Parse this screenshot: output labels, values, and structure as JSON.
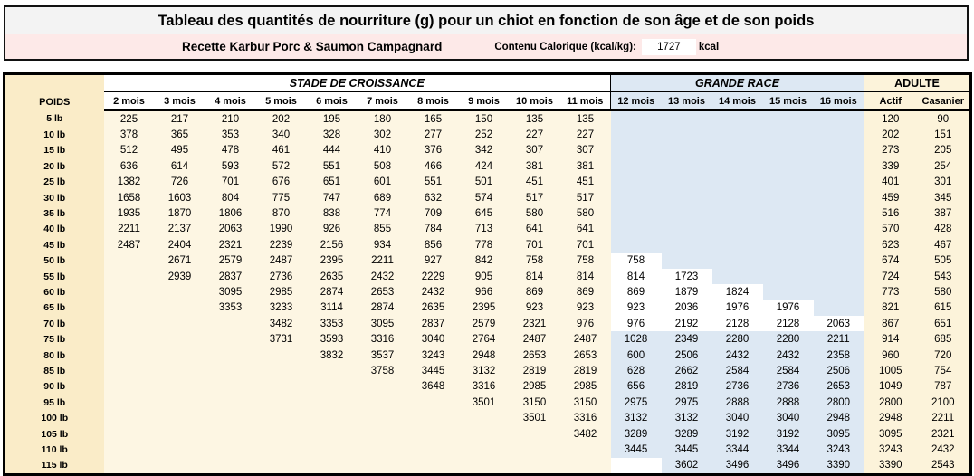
{
  "title_box": {
    "title": "Tableau des quantités de nourriture (g) pour un chiot en fonction de son âge et de son poids",
    "recipe": "Recette Karbur Porc & Saumon Campagnard",
    "calorie_label": "Contenu Calorique (kcal/kg):",
    "calorie_value": "1727",
    "calorie_unit": "kcal"
  },
  "table": {
    "corner_label": "POIDS",
    "groups": [
      {
        "label": "STADE DE CROISSANCE",
        "span": 10,
        "style": "stade"
      },
      {
        "label": "GRANDE RACE",
        "span": 5,
        "style": "grande"
      },
      {
        "label": "ADULTE",
        "span": 2,
        "style": "adulte"
      }
    ],
    "columns": [
      "2 mois",
      "3 mois",
      "4 mois",
      "5 mois",
      "6 mois",
      "7 mois",
      "8 mois",
      "9 mois",
      "10 mois",
      "11 mois",
      "12 mois",
      "13 mois",
      "14 mois",
      "15 mois",
      "16 mois",
      "Actif",
      "Casanier"
    ],
    "rows": [
      {
        "weight": "5 lb",
        "values": [
          "225",
          "217",
          "210",
          "202",
          "195",
          "180",
          "165",
          "150",
          "135",
          "135",
          "",
          "",
          "",
          "",
          "",
          "120",
          "90"
        ]
      },
      {
        "weight": "10 lb",
        "values": [
          "378",
          "365",
          "353",
          "340",
          "328",
          "302",
          "277",
          "252",
          "227",
          "227",
          "",
          "",
          "",
          "",
          "",
          "202",
          "151"
        ]
      },
      {
        "weight": "15 lb",
        "values": [
          "512",
          "495",
          "478",
          "461",
          "444",
          "410",
          "376",
          "342",
          "307",
          "307",
          "",
          "",
          "",
          "",
          "",
          "273",
          "205"
        ]
      },
      {
        "weight": "20 lb",
        "values": [
          "636",
          "614",
          "593",
          "572",
          "551",
          "508",
          "466",
          "424",
          "381",
          "381",
          "",
          "",
          "",
          "",
          "",
          "339",
          "254"
        ]
      },
      {
        "weight": "25 lb",
        "values": [
          "1382",
          "726",
          "701",
          "676",
          "651",
          "601",
          "551",
          "501",
          "451",
          "451",
          "",
          "",
          "",
          "",
          "",
          "401",
          "301"
        ]
      },
      {
        "weight": "30 lb",
        "values": [
          "1658",
          "1603",
          "804",
          "775",
          "747",
          "689",
          "632",
          "574",
          "517",
          "517",
          "",
          "",
          "",
          "",
          "",
          "459",
          "345"
        ]
      },
      {
        "weight": "35 lb",
        "values": [
          "1935",
          "1870",
          "1806",
          "870",
          "838",
          "774",
          "709",
          "645",
          "580",
          "580",
          "",
          "",
          "",
          "",
          "",
          "516",
          "387"
        ]
      },
      {
        "weight": "40 lb",
        "values": [
          "2211",
          "2137",
          "2063",
          "1990",
          "926",
          "855",
          "784",
          "713",
          "641",
          "641",
          "",
          "",
          "",
          "",
          "",
          "570",
          "428"
        ]
      },
      {
        "weight": "45 lb",
        "values": [
          "2487",
          "2404",
          "2321",
          "2239",
          "2156",
          "934",
          "856",
          "778",
          "701",
          "701",
          "",
          "",
          "",
          "",
          "",
          "623",
          "467"
        ]
      },
      {
        "weight": "50 lb",
        "values": [
          "",
          "2671",
          "2579",
          "2487",
          "2395",
          "2211",
          "927",
          "842",
          "758",
          "758",
          "758",
          "",
          "",
          "",
          "",
          "674",
          "505"
        ]
      },
      {
        "weight": "55 lb",
        "values": [
          "",
          "2939",
          "2837",
          "2736",
          "2635",
          "2432",
          "2229",
          "905",
          "814",
          "814",
          "814",
          "1723",
          "",
          "",
          "",
          "724",
          "543"
        ]
      },
      {
        "weight": "60 lb",
        "values": [
          "",
          "",
          "3095",
          "2985",
          "2874",
          "2653",
          "2432",
          "966",
          "869",
          "869",
          "869",
          "1879",
          "1824",
          "",
          "",
          "773",
          "580"
        ]
      },
      {
        "weight": "65 lb",
        "values": [
          "",
          "",
          "3353",
          "3233",
          "3114",
          "2874",
          "2635",
          "2395",
          "923",
          "923",
          "923",
          "2036",
          "1976",
          "1976",
          "",
          "821",
          "615"
        ]
      },
      {
        "weight": "70 lb",
        "values": [
          "",
          "",
          "",
          "3482",
          "3353",
          "3095",
          "2837",
          "2579",
          "2321",
          "976",
          "976",
          "2192",
          "2128",
          "2128",
          "2063",
          "867",
          "651"
        ]
      },
      {
        "weight": "75 lb",
        "values": [
          "",
          "",
          "",
          "3731",
          "3593",
          "3316",
          "3040",
          "2764",
          "2487",
          "2487",
          "1028",
          "2349",
          "2280",
          "2280",
          "2211",
          "914",
          "685"
        ]
      },
      {
        "weight": "80 lb",
        "values": [
          "",
          "",
          "",
          "",
          "3832",
          "3537",
          "3243",
          "2948",
          "2653",
          "2653",
          "600",
          "2506",
          "2432",
          "2432",
          "2358",
          "960",
          "720"
        ]
      },
      {
        "weight": "85 lb",
        "values": [
          "",
          "",
          "",
          "",
          "",
          "3758",
          "3445",
          "3132",
          "2819",
          "2819",
          "628",
          "2662",
          "2584",
          "2584",
          "2506",
          "1005",
          "754"
        ]
      },
      {
        "weight": "90 lb",
        "values": [
          "",
          "",
          "",
          "",
          "",
          "",
          "3648",
          "3316",
          "2985",
          "2985",
          "656",
          "2819",
          "2736",
          "2736",
          "2653",
          "1049",
          "787"
        ]
      },
      {
        "weight": "95 lb",
        "values": [
          "",
          "",
          "",
          "",
          "",
          "",
          "",
          "3501",
          "3150",
          "3150",
          "2975",
          "2975",
          "2888",
          "2888",
          "2800",
          "2800",
          "2100"
        ]
      },
      {
        "weight": "100 lb",
        "values": [
          "",
          "",
          "",
          "",
          "",
          "",
          "",
          "",
          "3501",
          "3316",
          "3132",
          "3132",
          "3040",
          "3040",
          "2948",
          "2948",
          "2211"
        ]
      },
      {
        "weight": "105 lb",
        "values": [
          "",
          "",
          "",
          "",
          "",
          "",
          "",
          "",
          "",
          "3482",
          "3289",
          "3289",
          "3192",
          "3192",
          "3095",
          "3095",
          "2321"
        ]
      },
      {
        "weight": "110 lb",
        "values": [
          "",
          "",
          "",
          "",
          "",
          "",
          "",
          "",
          "",
          "",
          "3445",
          "3445",
          "3344",
          "3344",
          "3243",
          "3243",
          "2432"
        ]
      },
      {
        "weight": "115 lb",
        "values": [
          "",
          "",
          "",
          "",
          "",
          "",
          "",
          "",
          "",
          "",
          "",
          "3602",
          "3496",
          "3496",
          "3390",
          "3390",
          "2543"
        ]
      }
    ],
    "white_cells": [
      {
        "row": 9,
        "cols": [
          10
        ]
      },
      {
        "row": 10,
        "cols": [
          10,
          11
        ]
      },
      {
        "row": 11,
        "cols": [
          10,
          11,
          12
        ]
      },
      {
        "row": 12,
        "cols": [
          10,
          11,
          12,
          13
        ]
      },
      {
        "row": 13,
        "cols": [
          10,
          11,
          12,
          13,
          14
        ]
      },
      {
        "row": 22,
        "cols": [
          10
        ]
      }
    ]
  },
  "colors": {
    "title_bg": "#f3f3f3",
    "subtitle_bg": "#fde9e8",
    "poids_col": "#faecc8",
    "stade_bg": "#fdf6e3",
    "grande_bg": "#dde8f3",
    "grande_filled": "#ffffff",
    "adulte_bg": "#fcf3da",
    "border": "#000000"
  }
}
